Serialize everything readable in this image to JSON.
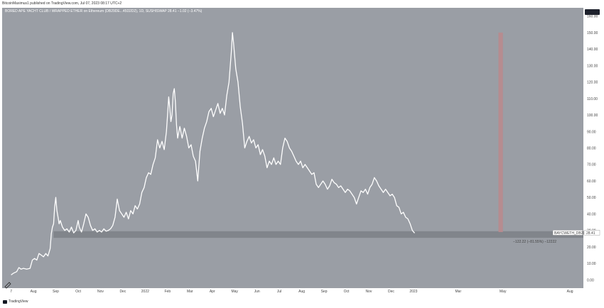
{
  "header": {
    "published": "BitcoinMaximus1 published on TradingView.com, Jul 07, 2023 08:17 UTC+2"
  },
  "footer": {
    "brand": "TradingView"
  },
  "chart_data": {
    "type": "line",
    "title": "BORED APE YACHT CLUB / WRAPPED ETHER on Ethereum (DB29DE...45D2D2), 1D, SUSHISWAP  28.41  −1.02 (−3.47%)",
    "price_label": "BAYCWETH_DB29DE",
    "last_price": "28.41",
    "measure_label": "−122.22 (−81.55%) −12222",
    "ylim": [
      -5,
      165
    ],
    "y_ticks": [
      0,
      10,
      20,
      30,
      40,
      50,
      60,
      70,
      80,
      90,
      100,
      110,
      120,
      130,
      140,
      150,
      160
    ],
    "y_tick_labels": [
      "0.00",
      "10.00",
      "20.00",
      "30.00",
      "40.00",
      "50.00",
      "60.00",
      "70.00",
      "80.00",
      "90.00",
      "100.00",
      "110.00",
      "120.00",
      "130.00",
      "140.00",
      "150.00",
      "160.00"
    ],
    "x_axis_labels": [
      "7",
      "Aug",
      "Sep",
      "Oct",
      "Nov",
      "Dec",
      "2022",
      "Feb",
      "Mar",
      "Apr",
      "May",
      "Jun",
      "Jul",
      "Aug",
      "Sep",
      "Oct",
      "Nov",
      "Dec",
      "2023",
      "Mar",
      "May",
      "Aug"
    ],
    "x_axis_month_index": [
      0,
      1,
      2,
      3,
      4,
      5,
      6,
      7,
      8,
      9,
      10,
      11,
      12,
      13,
      14,
      15,
      16,
      17,
      18,
      20,
      22,
      25
    ],
    "x_range_months": [
      -0.4,
      25.6
    ],
    "support_zone": {
      "from": 25.5,
      "to": 29.5,
      "x_start_month": 1.9,
      "x_end_month": 25.6,
      "color": "#7d8086"
    },
    "highlight_band": {
      "x_month_from": 21.8,
      "x_month_to": 22.0,
      "y_from": 29,
      "y_to": 150,
      "color": "#b98a8e"
    },
    "series": [
      {
        "color": "#ffffff",
        "points": [
          [
            0.0,
            3.0
          ],
          [
            0.1,
            4.0
          ],
          [
            0.25,
            5.0
          ],
          [
            0.35,
            7.5
          ],
          [
            0.45,
            6.5
          ],
          [
            0.55,
            7.0
          ],
          [
            0.7,
            6.5
          ],
          [
            0.85,
            7.0
          ],
          [
            0.95,
            12.0
          ],
          [
            1.05,
            13.0
          ],
          [
            1.15,
            12.0
          ],
          [
            1.25,
            16.0
          ],
          [
            1.35,
            15.0
          ],
          [
            1.45,
            14.0
          ],
          [
            1.55,
            16.0
          ],
          [
            1.65,
            14.5
          ],
          [
            1.75,
            19.0
          ],
          [
            1.8,
            28.0
          ],
          [
            1.85,
            32.0
          ],
          [
            1.9,
            34.0
          ],
          [
            1.95,
            44.0
          ],
          [
            2.0,
            50.0
          ],
          [
            2.05,
            42.0
          ],
          [
            2.1,
            38.0
          ],
          [
            2.15,
            34.0
          ],
          [
            2.2,
            36.0
          ],
          [
            2.3,
            32.0
          ],
          [
            2.4,
            30.0
          ],
          [
            2.5,
            31.0
          ],
          [
            2.6,
            29.0
          ],
          [
            2.7,
            32.0
          ],
          [
            2.8,
            28.5
          ],
          [
            2.9,
            30.0
          ],
          [
            3.0,
            36.0
          ],
          [
            3.05,
            32.0
          ],
          [
            3.15,
            29.0
          ],
          [
            3.25,
            34.0
          ],
          [
            3.35,
            40.0
          ],
          [
            3.45,
            38.0
          ],
          [
            3.55,
            33.0
          ],
          [
            3.65,
            30.0
          ],
          [
            3.75,
            31.0
          ],
          [
            3.85,
            29.0
          ],
          [
            3.95,
            30.0
          ],
          [
            4.05,
            29.0
          ],
          [
            4.15,
            31.0
          ],
          [
            4.25,
            29.5
          ],
          [
            4.35,
            30.0
          ],
          [
            4.45,
            31.0
          ],
          [
            4.55,
            33.0
          ],
          [
            4.65,
            38.0
          ],
          [
            4.75,
            49.0
          ],
          [
            4.85,
            42.0
          ],
          [
            4.95,
            40.0
          ],
          [
            5.05,
            38.0
          ],
          [
            5.15,
            41.0
          ],
          [
            5.25,
            37.0
          ],
          [
            5.35,
            42.0
          ],
          [
            5.45,
            40.0
          ],
          [
            5.55,
            45.0
          ],
          [
            5.65,
            43.0
          ],
          [
            5.75,
            46.0
          ],
          [
            5.85,
            53.0
          ],
          [
            5.95,
            56.0
          ],
          [
            6.05,
            62.0
          ],
          [
            6.15,
            65.0
          ],
          [
            6.25,
            64.0
          ],
          [
            6.35,
            70.0
          ],
          [
            6.45,
            74.0
          ],
          [
            6.55,
            85.0
          ],
          [
            6.65,
            80.0
          ],
          [
            6.75,
            84.0
          ],
          [
            6.85,
            79.0
          ],
          [
            6.95,
            90.0
          ],
          [
            7.0,
            100.0
          ],
          [
            7.05,
            111.0
          ],
          [
            7.1,
            104.0
          ],
          [
            7.15,
            96.0
          ],
          [
            7.2,
            100.0
          ],
          [
            7.25,
            113.0
          ],
          [
            7.3,
            116.0
          ],
          [
            7.35,
            108.0
          ],
          [
            7.4,
            94.0
          ],
          [
            7.45,
            86.0
          ],
          [
            7.55,
            93.0
          ],
          [
            7.65,
            86.0
          ],
          [
            7.75,
            92.0
          ],
          [
            7.85,
            87.0
          ],
          [
            7.95,
            80.0
          ],
          [
            8.05,
            82.0
          ],
          [
            8.15,
            75.0
          ],
          [
            8.25,
            72.0
          ],
          [
            8.35,
            60.0
          ],
          [
            8.45,
            78.0
          ],
          [
            8.55,
            86.0
          ],
          [
            8.65,
            92.0
          ],
          [
            8.75,
            96.0
          ],
          [
            8.85,
            102.0
          ],
          [
            8.95,
            104.0
          ],
          [
            9.05,
            99.0
          ],
          [
            9.15,
            103.0
          ],
          [
            9.25,
            107.0
          ],
          [
            9.35,
            101.0
          ],
          [
            9.45,
            104.0
          ],
          [
            9.55,
            100.0
          ],
          [
            9.65,
            112.0
          ],
          [
            9.75,
            120.0
          ],
          [
            9.85,
            138.0
          ],
          [
            9.9,
            150.0
          ],
          [
            9.95,
            144.0
          ],
          [
            10.05,
            128.0
          ],
          [
            10.15,
            120.0
          ],
          [
            10.25,
            105.0
          ],
          [
            10.35,
            95.0
          ],
          [
            10.45,
            80.0
          ],
          [
            10.55,
            84.0
          ],
          [
            10.65,
            87.0
          ],
          [
            10.75,
            83.0
          ],
          [
            10.85,
            85.0
          ],
          [
            10.95,
            80.0
          ],
          [
            11.05,
            82.0
          ],
          [
            11.15,
            76.0
          ],
          [
            11.25,
            79.0
          ],
          [
            11.35,
            75.0
          ],
          [
            11.45,
            68.0
          ],
          [
            11.55,
            72.0
          ],
          [
            11.65,
            70.0
          ],
          [
            11.75,
            74.0
          ],
          [
            11.85,
            70.0
          ],
          [
            11.95,
            72.0
          ],
          [
            12.05,
            70.0
          ],
          [
            12.15,
            80.0
          ],
          [
            12.25,
            86.0
          ],
          [
            12.35,
            84.0
          ],
          [
            12.45,
            80.0
          ],
          [
            12.55,
            78.0
          ],
          [
            12.65,
            75.0
          ],
          [
            12.75,
            72.0
          ],
          [
            12.85,
            70.0
          ],
          [
            12.95,
            72.0
          ],
          [
            13.05,
            68.0
          ],
          [
            13.15,
            70.0
          ],
          [
            13.25,
            68.0
          ],
          [
            13.35,
            66.0
          ],
          [
            13.45,
            64.0
          ],
          [
            13.55,
            65.0
          ],
          [
            13.65,
            58.0
          ],
          [
            13.75,
            56.0
          ],
          [
            13.85,
            58.0
          ],
          [
            13.95,
            60.0
          ],
          [
            14.05,
            58.0
          ],
          [
            14.15,
            55.0
          ],
          [
            14.25,
            57.0
          ],
          [
            14.35,
            61.0
          ],
          [
            14.45,
            59.0
          ],
          [
            14.55,
            58.0
          ],
          [
            14.65,
            56.0
          ],
          [
            14.75,
            57.0
          ],
          [
            14.85,
            55.0
          ],
          [
            14.95,
            53.0
          ],
          [
            15.05,
            55.0
          ],
          [
            15.15,
            54.0
          ],
          [
            15.25,
            52.0
          ],
          [
            15.35,
            50.0
          ],
          [
            15.45,
            46.0
          ],
          [
            15.55,
            50.0
          ],
          [
            15.65,
            54.0
          ],
          [
            15.75,
            53.0
          ],
          [
            15.85,
            55.0
          ],
          [
            15.95,
            52.0
          ],
          [
            16.05,
            56.0
          ],
          [
            16.15,
            58.0
          ],
          [
            16.25,
            62.0
          ],
          [
            16.35,
            60.0
          ],
          [
            16.45,
            57.0
          ],
          [
            16.55,
            55.0
          ],
          [
            16.65,
            53.0
          ],
          [
            16.75,
            55.0
          ],
          [
            16.85,
            53.0
          ],
          [
            16.95,
            51.0
          ],
          [
            17.05,
            52.0
          ],
          [
            17.15,
            50.0
          ],
          [
            17.25,
            45.0
          ],
          [
            17.35,
            44.0
          ],
          [
            17.45,
            40.0
          ],
          [
            17.55,
            41.0
          ],
          [
            17.65,
            38.0
          ],
          [
            17.75,
            37.0
          ],
          [
            17.85,
            34.0
          ],
          [
            17.95,
            30.0
          ],
          [
            18.05,
            28.4
          ]
        ]
      }
    ]
  }
}
